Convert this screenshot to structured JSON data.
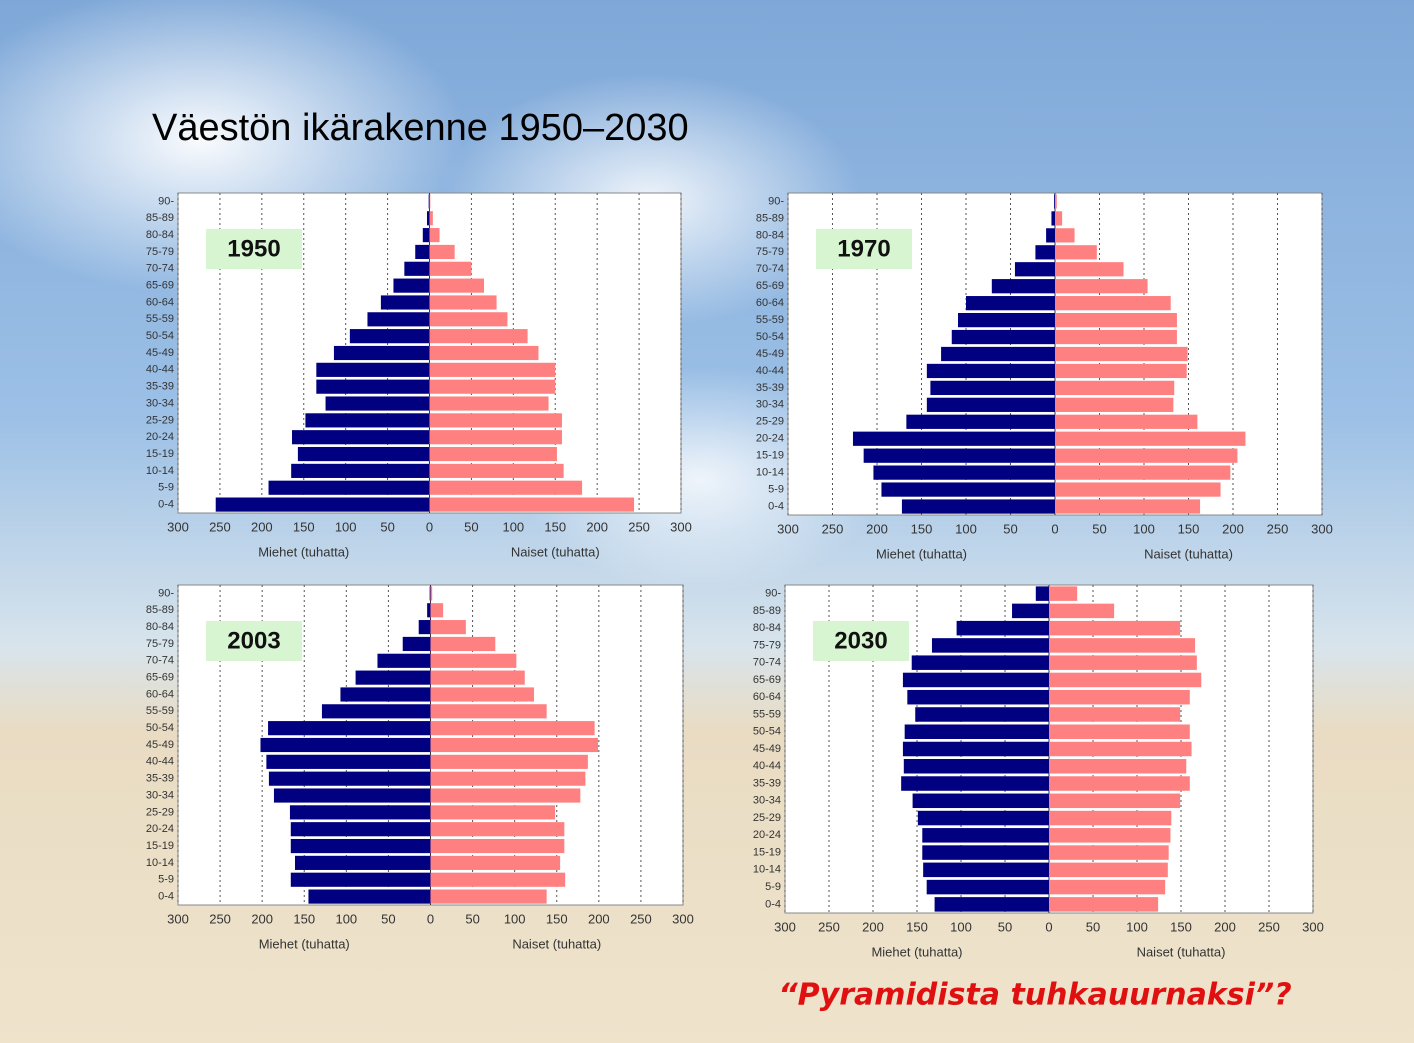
{
  "slide": {
    "title": "Väestön ikärakenne 1950–2030",
    "caption": "“Pyramidista tuhkauurnaksi”?"
  },
  "chart_data": [
    {
      "type": "pyramid",
      "title": "1950",
      "categories": [
        "0-4",
        "5-9",
        "10-14",
        "15-19",
        "20-24",
        "25-29",
        "30-34",
        "35-39",
        "40-44",
        "45-49",
        "50-54",
        "55-59",
        "60-64",
        "65-69",
        "70-74",
        "75-79",
        "80-84",
        "85-89",
        "90-"
      ],
      "series": [
        {
          "name": "Miehet (tuhatta)",
          "color": "#000080",
          "values": [
            255,
            192,
            165,
            157,
            164,
            148,
            124,
            135,
            135,
            114,
            95,
            74,
            58,
            43,
            30,
            17,
            8,
            3,
            1
          ]
        },
        {
          "name": "Naiset (tuhatta)",
          "color": "#ff8080",
          "values": [
            244,
            182,
            160,
            152,
            158,
            158,
            142,
            150,
            150,
            130,
            117,
            93,
            80,
            65,
            50,
            30,
            12,
            4,
            1
          ]
        }
      ],
      "xlim": [
        0,
        300
      ],
      "xticks": [
        0,
        50,
        100,
        150,
        200,
        250,
        300
      ],
      "grid": true
    },
    {
      "type": "pyramid",
      "title": "1970",
      "categories": [
        "0-4",
        "5-9",
        "10-14",
        "15-19",
        "20-24",
        "25-29",
        "30-34",
        "35-39",
        "40-44",
        "45-49",
        "50-54",
        "55-59",
        "60-64",
        "65-69",
        "70-74",
        "75-79",
        "80-84",
        "85-89",
        "90-"
      ],
      "series": [
        {
          "name": "Miehet (tuhatta)",
          "color": "#000080",
          "values": [
            172,
            195,
            204,
            215,
            227,
            167,
            144,
            140,
            144,
            128,
            116,
            109,
            100,
            71,
            45,
            22,
            10,
            4,
            1
          ]
        },
        {
          "name": "Naiset (tuhatta)",
          "color": "#ff8080",
          "values": [
            163,
            186,
            197,
            205,
            214,
            160,
            133,
            134,
            148,
            149,
            137,
            137,
            130,
            104,
            77,
            47,
            22,
            8,
            2
          ]
        }
      ],
      "xlim": [
        0,
        300
      ],
      "xticks": [
        0,
        50,
        100,
        150,
        200,
        250,
        300
      ],
      "grid": true
    },
    {
      "type": "pyramid",
      "title": "2003",
      "categories": [
        "0-4",
        "5-9",
        "10-14",
        "15-19",
        "20-24",
        "25-29",
        "30-34",
        "35-39",
        "40-44",
        "45-49",
        "50-54",
        "55-59",
        "60-64",
        "65-69",
        "70-74",
        "75-79",
        "80-84",
        "85-89",
        "90-"
      ],
      "series": [
        {
          "name": "Miehet (tuhatta)",
          "color": "#000080",
          "values": [
            145,
            166,
            161,
            166,
            166,
            167,
            186,
            192,
            195,
            202,
            193,
            129,
            107,
            89,
            63,
            33,
            14,
            4,
            1
          ]
        },
        {
          "name": "Naiset (tuhatta)",
          "color": "#ff8080",
          "values": [
            138,
            160,
            154,
            159,
            159,
            148,
            178,
            184,
            187,
            199,
            195,
            138,
            123,
            112,
            102,
            77,
            42,
            15,
            2
          ]
        }
      ],
      "xlim": [
        0,
        300
      ],
      "xticks": [
        0,
        50,
        100,
        150,
        200,
        250,
        300
      ],
      "grid": true
    },
    {
      "type": "pyramid",
      "title": "2030",
      "categories": [
        "0-4",
        "5-9",
        "10-14",
        "15-19",
        "20-24",
        "25-29",
        "30-34",
        "35-39",
        "40-44",
        "45-49",
        "50-54",
        "55-59",
        "60-64",
        "65-69",
        "70-74",
        "75-79",
        "80-84",
        "85-89",
        "90-"
      ],
      "series": [
        {
          "name": "Miehet (tuhatta)",
          "color": "#000080",
          "values": [
            130,
            139,
            143,
            144,
            144,
            149,
            155,
            168,
            165,
            166,
            164,
            152,
            161,
            166,
            156,
            133,
            105,
            42,
            15
          ]
        },
        {
          "name": "Naiset (tuhatta)",
          "color": "#ff8080",
          "values": [
            124,
            132,
            135,
            136,
            138,
            139,
            149,
            160,
            156,
            162,
            160,
            149,
            160,
            173,
            168,
            166,
            149,
            74,
            32
          ]
        }
      ],
      "xlim": [
        0,
        300
      ],
      "xticks": [
        0,
        50,
        100,
        150,
        200,
        250,
        300
      ],
      "grid": true
    }
  ]
}
